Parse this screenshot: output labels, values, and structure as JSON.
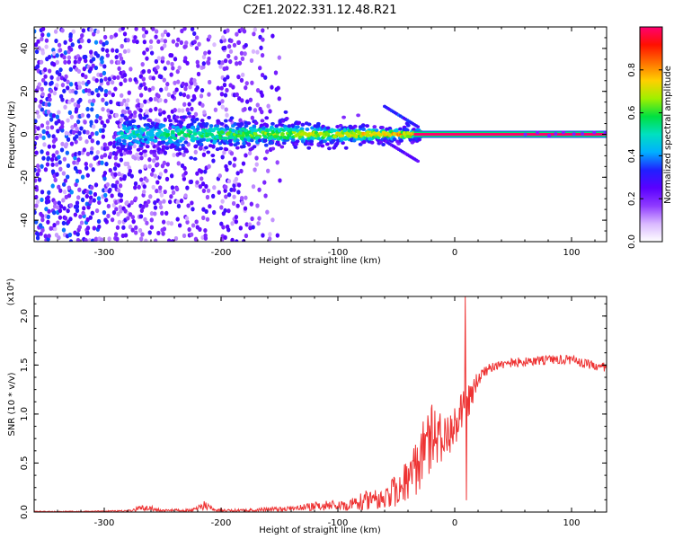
{
  "figure_title": "C2E1.2022.331.12.48.R21",
  "chart_data": [
    {
      "type": "heatmap",
      "name": "spectrogram",
      "xlabel": "Height of straight line (km)",
      "ylabel": "Frequency (Hz)",
      "xlim": [
        -360,
        130
      ],
      "ylim": [
        -50,
        50
      ],
      "x_ticks": [
        -300,
        -200,
        -100,
        0,
        100
      ],
      "x_tick_labels": [
        "-300",
        "-200",
        "-100",
        "0",
        "100"
      ],
      "y_ticks": [
        -40,
        -20,
        0,
        20,
        40
      ],
      "y_tick_labels": [
        "-40",
        "-20",
        "0",
        "20",
        "40"
      ],
      "colorbar": {
        "label": "Normalized spectral amplitude",
        "range": [
          0,
          1
        ],
        "ticks": [
          0.0,
          0.2,
          0.4,
          0.6,
          0.8
        ],
        "tick_labels": [
          "0.0",
          "0.2",
          "0.4",
          "0.6",
          "0.8"
        ],
        "colors": [
          "#ffffff",
          "#d9b8ff",
          "#8f3bff",
          "#5a00ff",
          "#2020ff",
          "#00b0ff",
          "#00e0c0",
          "#00e040",
          "#a0f000",
          "#ffd000",
          "#ff7000",
          "#ff1000",
          "#ff0070"
        ]
      },
      "features": {
        "diffuse_region_x": [
          -360,
          -150
        ],
        "main_band_x": [
          -290,
          -30
        ],
        "main_band_halfwidth_hz": [
          9,
          3
        ],
        "diverging_branch_x": [
          -60,
          -30
        ],
        "steady_carrier_x": [
          -35,
          130
        ],
        "steady_carrier_freq_hz": 0,
        "steady_carrier_value": 1.0
      }
    },
    {
      "type": "line",
      "name": "snr",
      "xlabel": "Height of straight line (km)",
      "ylabel": "SNR (10 * v/v)",
      "multiplier_label": "(x10⁴)",
      "xlim": [
        -360,
        130
      ],
      "ylim": [
        0,
        2.2
      ],
      "x_ticks": [
        -300,
        -200,
        -100,
        0,
        100
      ],
      "x_tick_labels": [
        "-300",
        "-200",
        "-100",
        "0",
        "100"
      ],
      "y_ticks": [
        0.0,
        0.5,
        1.0,
        1.5,
        2.0
      ],
      "y_tick_labels": [
        "0.0",
        "0.5",
        "1.0",
        "1.5",
        "2.0"
      ],
      "series": [
        {
          "name": "SNR",
          "color": "#ee3333",
          "envelope_x": [
            -360,
            -320,
            -280,
            -265,
            -250,
            -225,
            -215,
            -205,
            -180,
            -160,
            -140,
            -120,
            -110,
            -100,
            -90,
            -80,
            -70,
            -60,
            -50,
            -40,
            -30,
            -20,
            -10,
            -5,
            0,
            5,
            8,
            12,
            20,
            30,
            40,
            60,
            80,
            100,
            115,
            130
          ],
          "envelope_y": [
            0.01,
            0.01,
            0.02,
            0.08,
            0.03,
            0.03,
            0.12,
            0.03,
            0.03,
            0.05,
            0.06,
            0.1,
            0.12,
            0.12,
            0.15,
            0.2,
            0.25,
            0.3,
            0.4,
            0.55,
            0.85,
            1.1,
            1.0,
            1.05,
            1.1,
            1.2,
            1.25,
            1.3,
            1.45,
            1.55,
            1.57,
            1.58,
            1.6,
            1.6,
            1.55,
            1.52
          ],
          "noise_fraction": [
            0.9,
            0.9,
            0.9,
            0.9,
            0.9,
            0.9,
            0.9,
            0.9,
            0.9,
            0.9,
            0.9,
            0.9,
            0.9,
            0.9,
            0.9,
            0.9,
            0.9,
            0.9,
            0.9,
            0.85,
            0.75,
            0.6,
            0.5,
            0.5,
            0.45,
            0.35,
            0.3,
            0.25,
            0.12,
            0.08,
            0.07,
            0.06,
            0.06,
            0.06,
            0.06,
            0.06
          ],
          "spikes": [
            {
              "x": 9,
              "y": 2.2
            },
            {
              "x": 10,
              "y": 0.12
            }
          ]
        }
      ]
    }
  ]
}
